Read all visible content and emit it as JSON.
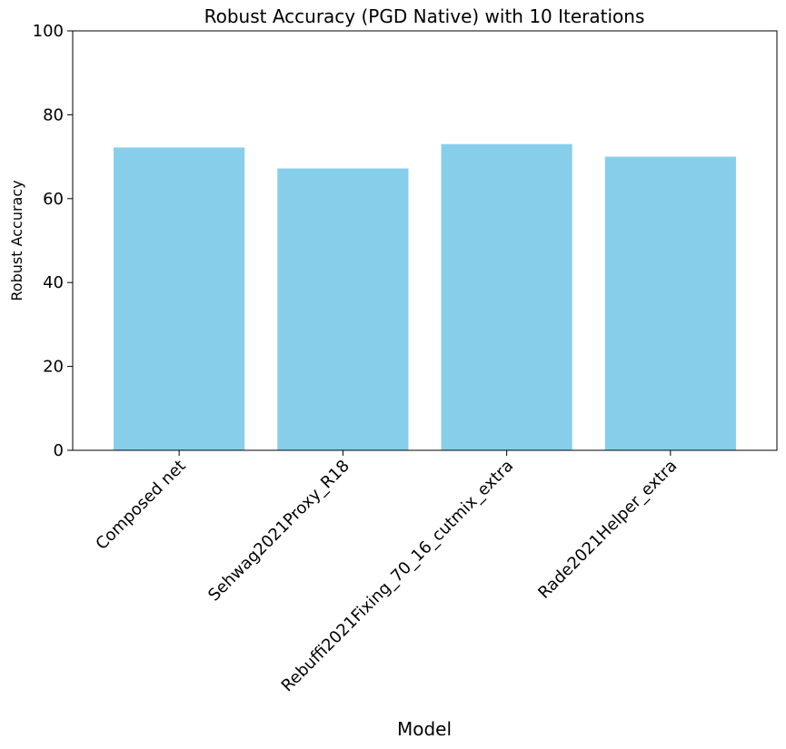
{
  "chart_data": {
    "type": "bar",
    "title": "Robust Accuracy (PGD Native) with 10 Iterations",
    "xlabel": "Model",
    "ylabel": "Robust Accuracy",
    "categories": [
      "Composed net",
      "Sehwag2021Proxy_R18",
      "Rebuffi2021Fixing_70_16_cutmix_extra",
      "Rade2021Helper_extra"
    ],
    "values": [
      72.2,
      67.2,
      73.0,
      70.0
    ],
    "ylim": [
      0,
      100
    ],
    "yticks": [
      "0",
      "20",
      "40",
      "60",
      "80",
      "100"
    ],
    "grid": false,
    "bar_color": "#87ceeb"
  }
}
